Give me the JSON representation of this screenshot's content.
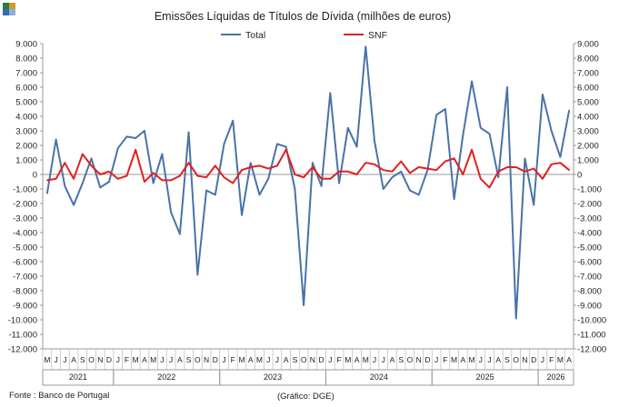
{
  "chart_data": {
    "type": "line",
    "title": "Emissões Líquidas de Títulos de Dívida (milhões de euros)",
    "xlabel": "",
    "ylabel": "",
    "ylim": [
      -12000,
      9000
    ],
    "y_ticks": [
      -12000,
      -11000,
      -10000,
      -9000,
      -8000,
      -7000,
      -6000,
      -5000,
      -4000,
      -3000,
      -2000,
      -1000,
      0,
      1000,
      2000,
      3000,
      4000,
      5000,
      6000,
      7000,
      8000,
      9000
    ],
    "y_tick_labels": [
      "-12.000",
      "-11.000",
      "-10.000",
      "-9.000",
      "-8.000",
      "-7.000",
      "-6.000",
      "-5.000",
      "-4.000",
      "-3.000",
      "-2.000",
      "-1.000",
      "0",
      "1.000",
      "2.000",
      "3.000",
      "4.000",
      "5.000",
      "6.000",
      "7.000",
      "8.000",
      "9.000"
    ],
    "grid": false,
    "legend": "top-center",
    "month_labels": [
      "M",
      "J",
      "J",
      "A",
      "S",
      "O",
      "N",
      "D",
      "J",
      "F",
      "M",
      "A",
      "M",
      "J",
      "J",
      "A",
      "S",
      "O",
      "N",
      "D",
      "J",
      "F",
      "M",
      "A",
      "M",
      "J",
      "J",
      "A",
      "S",
      "O",
      "N",
      "D",
      "J",
      "F",
      "M",
      "A",
      "M",
      "J",
      "J",
      "A",
      "S",
      "O",
      "N",
      "D",
      "J",
      "F",
      "M",
      "A",
      "M",
      "J",
      "J",
      "A",
      "S",
      "O",
      "N",
      "D",
      "J",
      "F",
      "M",
      "A"
    ],
    "x": [
      "2021-05",
      "2021-06",
      "2021-07",
      "2021-08",
      "2021-09",
      "2021-10",
      "2021-11",
      "2021-12",
      "2022-01",
      "2022-02",
      "2022-03",
      "2022-04",
      "2022-05",
      "2022-06",
      "2022-07",
      "2022-08",
      "2022-09",
      "2022-10",
      "2022-11",
      "2022-12",
      "2023-01",
      "2023-02",
      "2023-03",
      "2023-04",
      "2023-05",
      "2023-06",
      "2023-07",
      "2023-08",
      "2023-09",
      "2023-10",
      "2023-11",
      "2023-12",
      "2024-01",
      "2024-02",
      "2024-03",
      "2024-04",
      "2024-05",
      "2024-06",
      "2024-07",
      "2024-08",
      "2024-09",
      "2024-10",
      "2024-11",
      "2024-12",
      "2025-01",
      "2025-02",
      "2025-03",
      "2025-04",
      "2025-05",
      "2025-06",
      "2025-07",
      "2025-08",
      "2025-09",
      "2025-10",
      "2025-11",
      "2025-12",
      "2026-01",
      "2026-02",
      "2026-03",
      "2026-04"
    ],
    "year_groups": [
      {
        "label": "2021",
        "start": 0,
        "count": 8
      },
      {
        "label": "2022",
        "start": 8,
        "count": 12
      },
      {
        "label": "2023",
        "start": 20,
        "count": 12
      },
      {
        "label": "2024",
        "start": 32,
        "count": 12
      },
      {
        "label": "2025",
        "start": 44,
        "count": 12
      },
      {
        "label": "2026",
        "start": 56,
        "count": 4
      }
    ],
    "series": [
      {
        "name": "Total",
        "color": "#4a72a8",
        "values": [
          -1300,
          2400,
          -800,
          -2100,
          -600,
          1100,
          -900,
          -500,
          1800,
          2600,
          2500,
          3000,
          -600,
          1400,
          -2600,
          -4100,
          2900,
          -6900,
          -1100,
          -1400,
          2100,
          3700,
          -2800,
          800,
          -1400,
          -300,
          2100,
          1900,
          -1000,
          -9000,
          800,
          -800,
          5600,
          -600,
          3200,
          1900,
          8800,
          2300,
          -1000,
          -200,
          200,
          -1100,
          -1400,
          300,
          4100,
          4500,
          -1700,
          2700,
          6400,
          3200,
          2800,
          -200,
          6000,
          -9900,
          1100,
          -2100,
          5500,
          3000,
          1200,
          4400
        ]
      },
      {
        "name": "SNF",
        "color": "#e02020",
        "values": [
          -400,
          -300,
          800,
          -300,
          1400,
          600,
          0,
          200,
          -300,
          -100,
          1700,
          -500,
          100,
          -400,
          -400,
          -100,
          800,
          -100,
          -200,
          600,
          -200,
          -600,
          300,
          500,
          600,
          400,
          600,
          1700,
          0,
          -200,
          500,
          -300,
          -300,
          200,
          200,
          0,
          800,
          700,
          300,
          200,
          900,
          100,
          500,
          400,
          300,
          900,
          1100,
          0,
          1700,
          -300,
          -900,
          200,
          500,
          500,
          200,
          400,
          -300,
          700,
          800,
          300
        ]
      }
    ]
  },
  "footer": {
    "source": "Fonte : Banco de Portugal",
    "credit": "(Gráfico: DGE)"
  }
}
